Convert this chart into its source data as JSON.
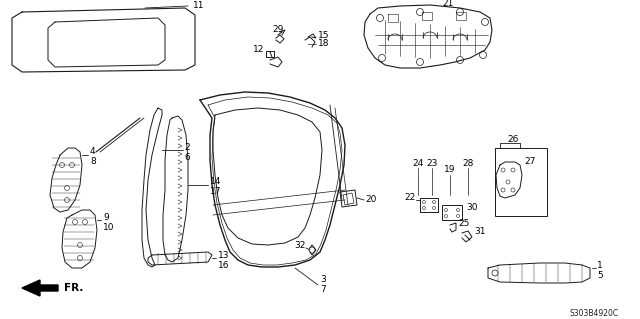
{
  "background_color": "#ffffff",
  "figure_width": 6.4,
  "figure_height": 3.19,
  "dpi": 100,
  "diagram_code": "S303B4920C",
  "line_color": "#1a1a1a",
  "text_color": "#000000",
  "font_size": 6.5
}
